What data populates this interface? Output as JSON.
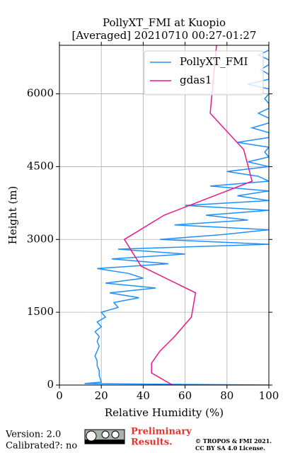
{
  "chart_data": {
    "type": "line",
    "title": "PollyXT_FMI at Kuopio",
    "subtitle": "[Averaged] 20210710 00:27-01:27",
    "x_label": "Relative Humidity (%)",
    "y_label": "Height (m)",
    "xlim": [
      0,
      100
    ],
    "xticks": [
      0,
      20,
      40,
      60,
      80,
      100
    ],
    "ylim": [
      0,
      7000
    ],
    "yticks": [
      0,
      1500,
      3000,
      4500,
      6000
    ],
    "grid": true,
    "legend": "upper right",
    "series": [
      {
        "name": "PollyXT_FMI",
        "color": "#1e90ff",
        "heights": [
          0,
          30,
          60,
          200,
          300,
          400,
          500,
          600,
          700,
          800,
          900,
          1000,
          1100,
          1200,
          1300,
          1400,
          1500,
          1600,
          1700,
          1800,
          1900,
          2000,
          2100,
          2200,
          2300,
          2400,
          2500,
          2600,
          2700,
          2800,
          2900,
          3000,
          3100,
          3200,
          3300,
          3400,
          3500,
          3600,
          3700,
          3800,
          3900,
          4000,
          4100,
          4200,
          4300,
          4400,
          4500,
          4600,
          4700,
          4800,
          4900,
          5000,
          5100,
          5200,
          5300,
          5400,
          5500,
          5600,
          5700,
          5800,
          5900,
          6000,
          6100,
          6200,
          6300,
          6400,
          6500,
          6600,
          6700,
          6800,
          6900,
          7000
        ],
        "values": [
          100,
          12,
          20,
          19,
          19,
          18,
          18,
          17,
          18,
          19,
          18,
          19,
          17,
          20,
          18,
          22,
          20,
          28,
          26,
          38,
          24,
          46,
          22,
          40,
          33,
          18,
          52,
          25,
          60,
          28,
          100,
          48,
          78,
          100,
          55,
          90,
          70,
          100,
          60,
          100,
          85,
          100,
          72,
          100,
          95,
          80,
          100,
          90,
          100,
          98,
          100,
          85,
          100,
          100,
          92,
          100,
          100,
          95,
          100,
          100,
          98,
          100,
          100,
          90,
          100,
          100,
          96,
          100,
          100,
          95,
          100,
          100
        ]
      },
      {
        "name": "gdas1",
        "color": "#e8198b",
        "heights": [
          0,
          250,
          450,
          700,
          1000,
          1400,
          1900,
          2450,
          3000,
          3500,
          4200,
          4850,
          5600,
          7000
        ],
        "values": [
          54,
          44,
          44,
          48,
          55,
          63,
          65,
          39,
          31,
          50,
          92,
          88,
          72,
          75
        ]
      }
    ]
  },
  "footer": {
    "version": "Version: 2.0",
    "calibrated": "Calibrated?: no",
    "preliminary": "Preliminary",
    "results": "Results.",
    "copyright": "© TROPOS & FMI 2021.",
    "license": "CC BY SA 4.0 License."
  }
}
